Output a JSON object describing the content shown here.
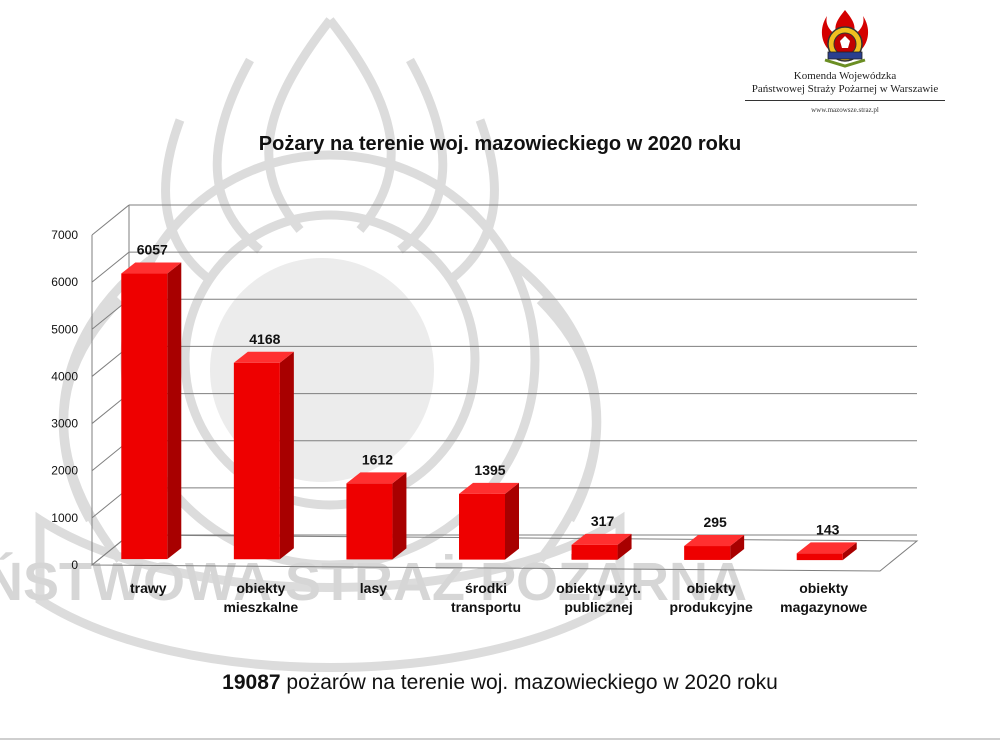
{
  "header": {
    "org_line1": "Komenda Wojewódzka",
    "org_line2": "Państwowej Straży Pożarnej w Warszawie",
    "website": "www.mazowsze.straz.pl",
    "watermark_text": "PAŃSTWOWA STRAŻ POŻARNA"
  },
  "colors": {
    "bar_front": "#ee0000",
    "bar_side": "#a80000",
    "bar_top": "#ff3030",
    "grid": "#7f7f7f",
    "watermark": "#dcdcdc"
  },
  "chart_data": {
    "type": "bar",
    "title": "Pożary na terenie woj. mazowieckiego w 2020 roku",
    "categories": [
      [
        "trawy"
      ],
      [
        "obiekty",
        "mieszkalne"
      ],
      [
        "lasy"
      ],
      [
        "środki",
        "transportu"
      ],
      [
        "obiekty użyt.",
        "publicznej"
      ],
      [
        "obiekty",
        "produkcyjne"
      ],
      [
        "obiekty",
        "magazynowe"
      ]
    ],
    "values": [
      6057,
      4168,
      1612,
      1395,
      317,
      295,
      143
    ],
    "ylim": [
      0,
      7000
    ],
    "yticks": [
      0,
      1000,
      2000,
      3000,
      4000,
      5000,
      6000,
      7000
    ],
    "grid": true,
    "style": "3d"
  },
  "footer": {
    "total": "19087",
    "text": " pożarów na terenie woj. mazowieckiego w 2020 roku"
  }
}
